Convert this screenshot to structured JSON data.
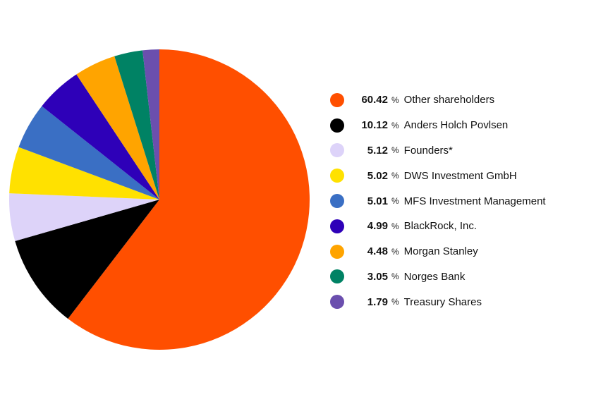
{
  "chart_data": {
    "type": "pie",
    "title": "",
    "percent_symbol": "%",
    "slices": [
      {
        "label": "Other shareholders",
        "value": 60.42,
        "display": "60.42",
        "color": "#FF4F00"
      },
      {
        "label": "Anders Holch Povlsen",
        "value": 10.12,
        "display": "10.12",
        "color": "#000000"
      },
      {
        "label": "Founders*",
        "value": 5.12,
        "display": "5.12",
        "color": "#DDD3F9"
      },
      {
        "label": "DWS Investment GmbH",
        "value": 5.02,
        "display": "5.02",
        "color": "#FFE100"
      },
      {
        "label": "MFS Investment Management",
        "value": 5.01,
        "display": "5.01",
        "color": "#3A6FC4"
      },
      {
        "label": "BlackRock, Inc.",
        "value": 4.99,
        "display": "4.99",
        "color": "#2E00B8"
      },
      {
        "label": "Morgan Stanley",
        "value": 4.48,
        "display": "4.48",
        "color": "#FFA400"
      },
      {
        "label": "Norges Bank",
        "value": 3.05,
        "display": "3.05",
        "color": "#008264"
      },
      {
        "label": "Treasury Shares",
        "value": 1.79,
        "display": "1.79",
        "color": "#6B4FAE"
      }
    ],
    "legend_position": "right"
  }
}
